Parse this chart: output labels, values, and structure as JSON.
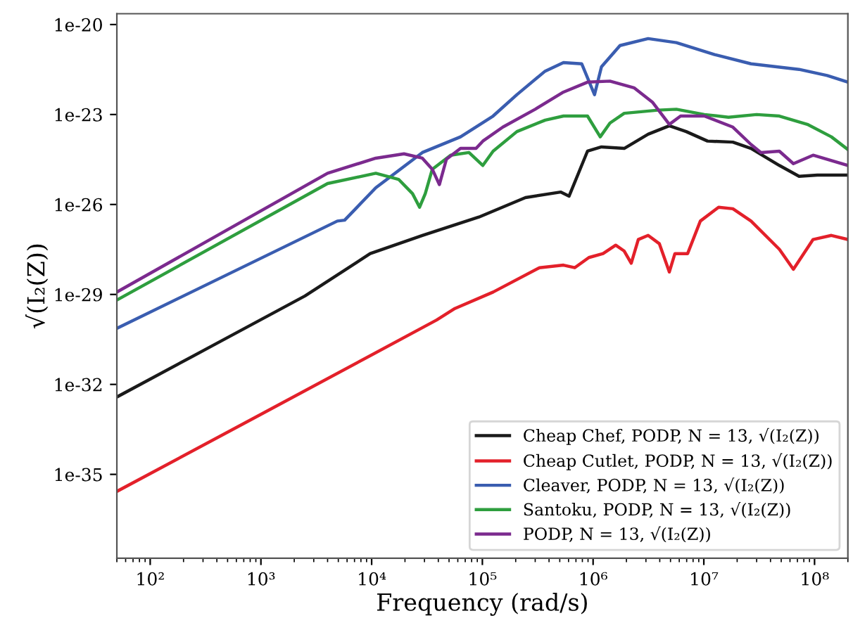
{
  "chart_data": {
    "type": "line",
    "xlabel": "Frequency (rad/s)",
    "ylabel": "√(I₂(Z))",
    "log": "xy",
    "grid": false,
    "legend": "bottom right",
    "xlim": [
      50,
      200000000.0
    ],
    "ylim": [
      1.6e-38,
      2.3e-20
    ],
    "xticks": [
      {
        "value": 100,
        "label": "10²"
      },
      {
        "value": 1000,
        "label": "10³"
      },
      {
        "value": 10000,
        "label": "10⁴"
      },
      {
        "value": 100000,
        "label": "10⁵"
      },
      {
        "value": 1000000,
        "label": "10⁶"
      },
      {
        "value": 10000000,
        "label": "10⁷"
      },
      {
        "value": 100000000,
        "label": "10⁸"
      }
    ],
    "yticks": [
      {
        "value": 1e-20,
        "label": "1e-20"
      },
      {
        "value": 1e-23,
        "label": "1e-23"
      },
      {
        "value": 1e-26,
        "label": "1e-26"
      },
      {
        "value": 1e-29,
        "label": "1e-29"
      },
      {
        "value": 1e-32,
        "label": "1e-32"
      },
      {
        "value": 1e-35,
        "label": "1e-35"
      }
    ],
    "series": [
      {
        "name": "Cheap Chef, PODP, N = 13, √(I₂(Z))",
        "color": "#1a1a1a",
        "x": [
          50,
          350,
          2500,
          9700,
          28700,
          93000,
          245000,
          509000,
          607000,
          890000,
          1190000,
          1910000,
          3140000,
          4880000,
          6930000,
          10800000,
          18300000,
          26700000,
          48100000,
          72500000,
          106000000,
          200000000
        ],
        "values": [
          3.8e-33,
          1.8e-31,
          8.9e-30,
          2.3e-28,
          9.3e-28,
          3.8e-27,
          1.7e-26,
          2.6e-26,
          1.9e-26,
          6e-25,
          8.3e-25,
          7.4e-25,
          2.2e-24,
          4.2e-24,
          2.7e-24,
          1.3e-24,
          1.2e-24,
          7.4e-25,
          2e-25,
          8.7e-26,
          9.6e-26,
          9.6e-26
        ]
      },
      {
        "name": "Cheap Cutlet, PODP, N = 13, √(I₂(Z))",
        "color": "#e3202a",
        "x": [
          50,
          1000,
          38600,
          56500,
          125000,
          328000,
          540000,
          682000,
          916000,
          1230000,
          1600000,
          1910000,
          2210000,
          2560000,
          3140000,
          3970000,
          4880000,
          5480000,
          7140000,
          9300000,
          13600000,
          18300000,
          26700000,
          48100000,
          64400000,
          97000000,
          142000000,
          200000000
        ],
        "values": [
          2.7e-36,
          1e-33,
          1.4e-30,
          3.4e-30,
          1.2e-29,
          7.8e-29,
          9.5e-29,
          7.8e-29,
          1.7e-28,
          2.3e-28,
          4.4e-28,
          2.8e-28,
          1.1e-28,
          6.8e-28,
          9.3e-28,
          4.9e-28,
          5.6e-29,
          2.3e-28,
          2.3e-28,
          2.8e-27,
          8.1e-27,
          7.2e-27,
          2.8e-27,
          3.2e-28,
          6.9e-29,
          6.8e-28,
          9.3e-28,
          6.8e-28
        ]
      },
      {
        "name": "Cleaver, PODP, N = 13, √(I₂(Z))",
        "color": "#3a5db0",
        "x": [
          50,
          4900,
          5700,
          10900,
          28700,
          63500,
          125000,
          205000,
          369000,
          540000,
          790000,
          1030000,
          1190000,
          1750000,
          3140000,
          5650000,
          12500000,
          26700000,
          72500000,
          130000000,
          200000000
        ],
        "values": [
          7.4e-31,
          2.8e-27,
          3e-27,
          3.6e-26,
          5.4e-25,
          1.8e-24,
          8.9e-24,
          4.6e-23,
          2.8e-22,
          5.4e-22,
          4.9e-22,
          4.6e-23,
          3.9e-22,
          2e-21,
          3.4e-21,
          2.5e-21,
          1e-21,
          4.9e-22,
          3.2e-22,
          2e-22,
          1.2e-22
        ]
      },
      {
        "name": "Santoku, PODP, N = 13, √(I₂(Z))",
        "color": "#2e9e3e",
        "x": [
          50,
          4000,
          10900,
          17500,
          23400,
          27100,
          30500,
          35300,
          51700,
          75700,
          101000,
          125000,
          205000,
          369000,
          540000,
          890000,
          1160000,
          1420000,
          1910000,
          3860000,
          5650000,
          10100000,
          16700000,
          30000000,
          48100000,
          86000000,
          142000000,
          200000000
        ],
        "values": [
          6.5e-30,
          5e-26,
          1.1e-25,
          6.9e-26,
          2.3e-26,
          8.1e-27,
          2.3e-26,
          1.5e-25,
          4.4e-25,
          5.4e-25,
          2e-25,
          6e-25,
          2.7e-24,
          6.5e-24,
          8.9e-24,
          8.9e-24,
          1.8e-24,
          5.2e-24,
          1.1e-23,
          1.4e-23,
          1.5e-23,
          1e-23,
          8.1e-24,
          1e-23,
          8.9e-24,
          4.7e-24,
          1.8e-24,
          6.8e-25
        ]
      },
      {
        "name": "PODP, N = 13, √(I₂(Z))",
        "color": "#7b2a8e",
        "x": [
          50,
          4000,
          10900,
          19600,
          28700,
          35300,
          40900,
          47300,
          63500,
          87700,
          101000,
          153000,
          300000,
          540000,
          890000,
          1420000,
          2340000,
          3430000,
          4880000,
          6170000,
          10100000,
          18300000,
          26700000,
          32800000,
          48100000,
          64400000,
          97000000,
          200000000
        ],
        "values": [
          1.2e-29,
          1.1e-25,
          3.5e-25,
          4.9e-25,
          3.5e-25,
          1.5e-25,
          4.6e-26,
          3.2e-25,
          7.4e-25,
          7.4e-25,
          1.3e-24,
          3.8e-24,
          1.5e-23,
          5.6e-23,
          1.2e-22,
          1.3e-22,
          7.8e-23,
          2.6e-23,
          4.7e-24,
          8.9e-24,
          8.9e-24,
          3.8e-24,
          1e-24,
          5.4e-25,
          6e-25,
          2.3e-25,
          4.4e-25,
          2e-25
        ]
      }
    ]
  }
}
